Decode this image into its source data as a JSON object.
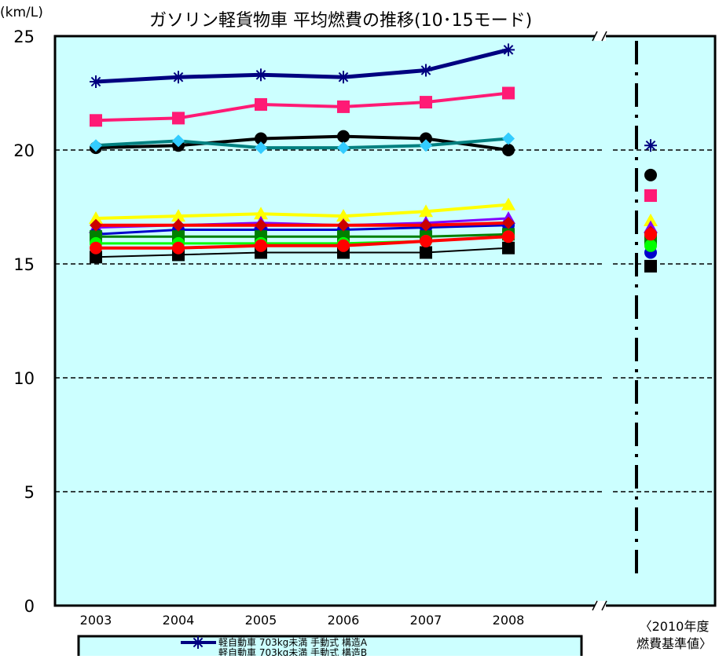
{
  "chart_data": {
    "type": "line",
    "title": "ガソリン軽貨物車 平均燃費の推移(10･15モード)",
    "unit_label": "(km/L)",
    "categories": [
      "2003",
      "2004",
      "2005",
      "2006",
      "2007",
      "2008"
    ],
    "y_range": [
      0,
      25
    ],
    "y_ticks": [
      0,
      5,
      10,
      15,
      20,
      25
    ],
    "grid": "horizontal dashed",
    "plot_background": "#ccffff",
    "standard_label": "〈2010年度\n燃費基準値〉",
    "legend_lines": [
      "軽自動車 703kg未満 手動式 構造A",
      "軽自動車 703kg未満 手動式 構造B"
    ],
    "series": [
      {
        "color": "#000080",
        "marker": "asterisk",
        "width": 5,
        "values": [
          23.0,
          23.2,
          23.3,
          23.2,
          23.5,
          24.4
        ],
        "standard": 20.2
      },
      {
        "color": "#ff1a75",
        "marker": "square",
        "width": 4,
        "values": [
          21.3,
          21.4,
          22.0,
          21.9,
          22.1,
          22.5
        ],
        "standard": 18.0
      },
      {
        "color": "#000000",
        "marker": "circle",
        "width": 4,
        "values": [
          20.1,
          20.2,
          20.5,
          20.6,
          20.5,
          20.0
        ],
        "standard": 18.9
      },
      {
        "color": "#008080",
        "marker": "diamond",
        "width": 4,
        "values": [
          20.2,
          20.4,
          20.1,
          20.1,
          20.2,
          20.5
        ],
        "standard": null,
        "marker_color": "#33ccff"
      },
      {
        "color": "#ffff00",
        "marker": "triangle",
        "width": 4,
        "values": [
          17.0,
          17.1,
          17.2,
          17.1,
          17.3,
          17.6
        ],
        "standard": 16.9
      },
      {
        "color": "#8000ff",
        "marker": "triangle",
        "width": 3,
        "values": [
          16.6,
          16.7,
          16.8,
          16.7,
          16.8,
          17.0
        ],
        "standard": 16.6
      },
      {
        "color": "#0000cc",
        "marker": "circle",
        "width": 3,
        "values": [
          16.3,
          16.5,
          16.5,
          16.5,
          16.6,
          16.7
        ],
        "standard": 15.5
      },
      {
        "color": "#008000",
        "marker": "square",
        "width": 3,
        "values": [
          16.2,
          16.2,
          16.2,
          16.2,
          16.2,
          16.3
        ],
        "standard": 16.1
      },
      {
        "color": "#00ff00",
        "marker": "circle",
        "width": 3,
        "values": [
          15.9,
          15.9,
          15.9,
          15.9,
          16.0,
          16.2
        ],
        "standard": 15.8
      },
      {
        "color": "#000000",
        "marker": "square",
        "width": 2,
        "values": [
          15.3,
          15.4,
          15.5,
          15.5,
          15.5,
          15.7
        ],
        "standard": 14.9
      },
      {
        "color": "#ff0000",
        "marker": "diamond",
        "width": 4,
        "values": [
          16.7,
          16.7,
          16.7,
          16.7,
          16.7,
          16.8
        ],
        "standard": 16.4,
        "marker_color": "#cc0000"
      },
      {
        "color": "#ff0000",
        "marker": "circle",
        "width": 4,
        "values": [
          15.7,
          15.7,
          15.8,
          15.8,
          16.0,
          16.2
        ],
        "standard": 16.3
      }
    ]
  }
}
